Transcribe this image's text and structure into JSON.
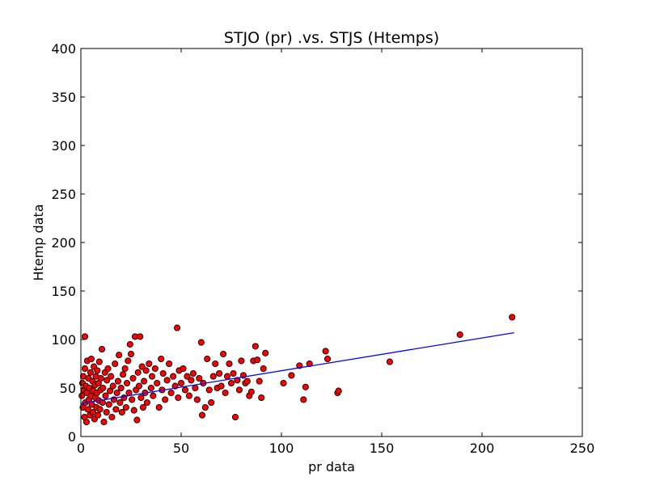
{
  "chart_data": {
    "type": "scatter",
    "title": "STJO (pr) .vs. STJS (Htemps)",
    "xlabel": "pr data",
    "ylabel": "Htemp data",
    "xlim": [
      0,
      250
    ],
    "ylim": [
      0,
      400
    ],
    "xticks": [
      0,
      50,
      100,
      150,
      200,
      250
    ],
    "yticks": [
      0,
      50,
      100,
      150,
      200,
      250,
      300,
      350,
      400
    ],
    "grid": false,
    "colors": {
      "points": "#ff0000",
      "point_edge": "#000000",
      "fit_line": "#0000ff"
    },
    "series": [
      {
        "type": "scatter",
        "points": [
          [
            0.5,
            42
          ],
          [
            0.8,
            55
          ],
          [
            1,
            30
          ],
          [
            1.2,
            62
          ],
          [
            1.5,
            48
          ],
          [
            1.8,
            20
          ],
          [
            2,
            103
          ],
          [
            2,
            70
          ],
          [
            2.2,
            35
          ],
          [
            2.5,
            52
          ],
          [
            2.8,
            15
          ],
          [
            3,
            45
          ],
          [
            3.2,
            78
          ],
          [
            3.5,
            28
          ],
          [
            3.8,
            60
          ],
          [
            4,
            38
          ],
          [
            4.2,
            50
          ],
          [
            4.5,
            22
          ],
          [
            4.8,
            66
          ],
          [
            5,
            42
          ],
          [
            5.2,
            80
          ],
          [
            5.5,
            33
          ],
          [
            5.8,
            57
          ],
          [
            6,
            25
          ],
          [
            6.2,
            47
          ],
          [
            6.5,
            72
          ],
          [
            6.8,
            18
          ],
          [
            7,
            53
          ],
          [
            7.2,
            40
          ],
          [
            7.5,
            62
          ],
          [
            7.8,
            30
          ],
          [
            8,
            45
          ],
          [
            8.2,
            68
          ],
          [
            8.5,
            22
          ],
          [
            8.8,
            55
          ],
          [
            9,
            37
          ],
          [
            9.2,
            77
          ],
          [
            9.5,
            28
          ],
          [
            9.8,
            48
          ],
          [
            10,
            60
          ],
          [
            10.5,
            90
          ],
          [
            10.8,
            35
          ],
          [
            11,
            50
          ],
          [
            11.5,
            15
          ],
          [
            12,
            66
          ],
          [
            12.3,
            42
          ],
          [
            12.8,
            25
          ],
          [
            13,
            58
          ],
          [
            13.5,
            70
          ],
          [
            14,
            33
          ],
          [
            14.5,
            47
          ],
          [
            15,
            62
          ],
          [
            15.5,
            20
          ],
          [
            16,
            52
          ],
          [
            16.5,
            38
          ],
          [
            17,
            75
          ],
          [
            17.5,
            28
          ],
          [
            18,
            45
          ],
          [
            18.5,
            57
          ],
          [
            19,
            84
          ],
          [
            19.5,
            35
          ],
          [
            20,
            50
          ],
          [
            20.5,
            25
          ],
          [
            21,
            64
          ],
          [
            21.5,
            40
          ],
          [
            22,
            70
          ],
          [
            22.5,
            30
          ],
          [
            23,
            55
          ],
          [
            23.5,
            78
          ],
          [
            24,
            45
          ],
          [
            24.5,
            95
          ],
          [
            25,
            85
          ],
          [
            25.5,
            38
          ],
          [
            26,
            60
          ],
          [
            26.5,
            27
          ],
          [
            27,
            103
          ],
          [
            27.5,
            48
          ],
          [
            28,
            17
          ],
          [
            28.5,
            66
          ],
          [
            29,
            52
          ],
          [
            29.5,
            103
          ],
          [
            30,
            40
          ],
          [
            30.5,
            72
          ],
          [
            31,
            30
          ],
          [
            31.5,
            57
          ],
          [
            32,
            45
          ],
          [
            32.5,
            68
          ],
          [
            33,
            35
          ],
          [
            34,
            75
          ],
          [
            35,
            50
          ],
          [
            35.5,
            62
          ],
          [
            36,
            42
          ],
          [
            37,
            70
          ],
          [
            38,
            55
          ],
          [
            39,
            30
          ],
          [
            40,
            80
          ],
          [
            40.5,
            48
          ],
          [
            41,
            65
          ],
          [
            42,
            38
          ],
          [
            43,
            58
          ],
          [
            44,
            75
          ],
          [
            45,
            45
          ],
          [
            46,
            62
          ],
          [
            47,
            52
          ],
          [
            48,
            112
          ],
          [
            48.5,
            40
          ],
          [
            49,
            68
          ],
          [
            50,
            55
          ],
          [
            51,
            70
          ],
          [
            52,
            48
          ],
          [
            53,
            62
          ],
          [
            54,
            42
          ],
          [
            55,
            58
          ],
          [
            56,
            65
          ],
          [
            57,
            50
          ],
          [
            58,
            38
          ],
          [
            59,
            60
          ],
          [
            60,
            97
          ],
          [
            60.5,
            22
          ],
          [
            61,
            55
          ],
          [
            62,
            30
          ],
          [
            63,
            80
          ],
          [
            64,
            48
          ],
          [
            65,
            35
          ],
          [
            66,
            62
          ],
          [
            67,
            75
          ],
          [
            68,
            50
          ],
          [
            69,
            65
          ],
          [
            70,
            52
          ],
          [
            71,
            85
          ],
          [
            72,
            45
          ],
          [
            73,
            62
          ],
          [
            74,
            75
          ],
          [
            75,
            55
          ],
          [
            76,
            65
          ],
          [
            77,
            20
          ],
          [
            78,
            58
          ],
          [
            79,
            48
          ],
          [
            80,
            78
          ],
          [
            81,
            63
          ],
          [
            82,
            55
          ],
          [
            83,
            57
          ],
          [
            84,
            42
          ],
          [
            85,
            46
          ],
          [
            86,
            78
          ],
          [
            87,
            93
          ],
          [
            88,
            79
          ],
          [
            89,
            57
          ],
          [
            90,
            40
          ],
          [
            91,
            70
          ],
          [
            92,
            86
          ],
          [
            101,
            55
          ],
          [
            105,
            63
          ],
          [
            109,
            73
          ],
          [
            111,
            38
          ],
          [
            112,
            51
          ],
          [
            114,
            75
          ],
          [
            122,
            88
          ],
          [
            123,
            80
          ],
          [
            128,
            45
          ],
          [
            128.5,
            47
          ],
          [
            154,
            77
          ],
          [
            189,
            105
          ],
          [
            215,
            123
          ]
        ]
      },
      {
        "type": "line",
        "points": [
          [
            0,
            34
          ],
          [
            216,
            107
          ]
        ]
      }
    ]
  }
}
